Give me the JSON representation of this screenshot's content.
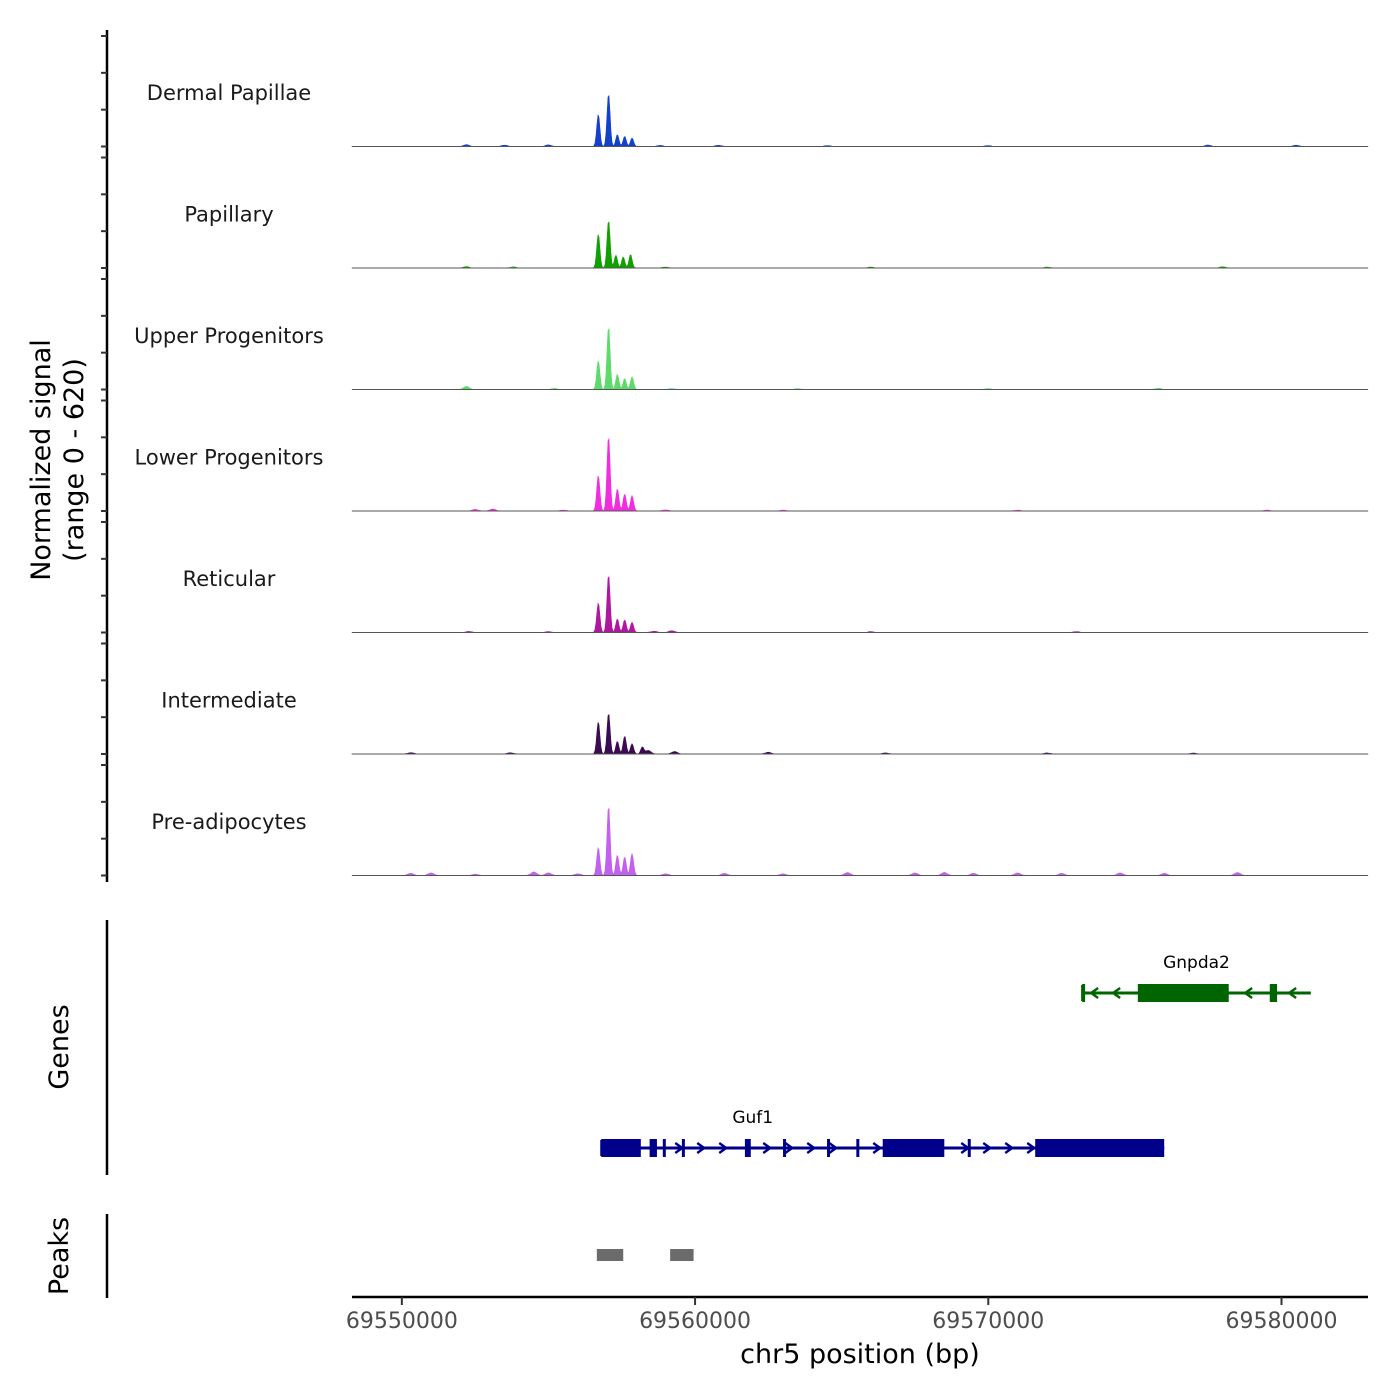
{
  "chart_data": {
    "type": "area",
    "chromosome": "chr5",
    "xlabel": "chr5 position (bp)",
    "ylabel_line1": "Normalized signal",
    "ylabel_line2": "(range 0 - 620)",
    "y_range": [
      0,
      620
    ],
    "xlim": [
      69548300,
      69582950
    ],
    "x_ticks": [
      69550000,
      69560000,
      69570000,
      69580000
    ],
    "x_tick_labels": [
      "69550000",
      "69560000",
      "69570000",
      "69580000"
    ],
    "coverage_tracks": [
      {
        "name": "Dermal Papillae",
        "color": "#1440cc",
        "peaks": [
          [
            69556700,
            380
          ],
          [
            69557050,
            620
          ],
          [
            69557350,
            140
          ],
          [
            69557600,
            120
          ],
          [
            69557850,
            100
          ]
        ],
        "noise": [
          [
            69552200,
            20
          ],
          [
            69553500,
            15
          ],
          [
            69555000,
            18
          ],
          [
            69558800,
            12
          ],
          [
            69560800,
            14
          ],
          [
            69564500,
            10
          ],
          [
            69570000,
            10
          ],
          [
            69577500,
            16
          ],
          [
            69580500,
            14
          ]
        ]
      },
      {
        "name": "Papillary",
        "color": "#11a000",
        "peaks": [
          [
            69556700,
            400
          ],
          [
            69557050,
            560
          ],
          [
            69557300,
            150
          ],
          [
            69557550,
            130
          ],
          [
            69557800,
            160
          ]
        ],
        "noise": [
          [
            69552200,
            15
          ],
          [
            69553800,
            12
          ],
          [
            69559000,
            10
          ],
          [
            69566000,
            10
          ],
          [
            69572000,
            10
          ],
          [
            69578000,
            14
          ]
        ]
      },
      {
        "name": "Upper Progenitors",
        "color": "#5ddb6a",
        "peaks": [
          [
            69556700,
            340
          ],
          [
            69557050,
            740
          ],
          [
            69557350,
            180
          ],
          [
            69557600,
            130
          ],
          [
            69557850,
            150
          ]
        ],
        "noise": [
          [
            69552200,
            35
          ],
          [
            69555200,
            12
          ],
          [
            69559200,
            10
          ],
          [
            69563500,
            10
          ],
          [
            69570000,
            10
          ],
          [
            69575800,
            14
          ]
        ]
      },
      {
        "name": "Lower Progenitors",
        "color": "#f22de0",
        "peaks": [
          [
            69556700,
            420
          ],
          [
            69557050,
            880
          ],
          [
            69557350,
            260
          ],
          [
            69557600,
            200
          ],
          [
            69557850,
            180
          ]
        ],
        "noise": [
          [
            69552500,
            18
          ],
          [
            69553100,
            22
          ],
          [
            69555500,
            10
          ],
          [
            69559000,
            12
          ],
          [
            69563000,
            10
          ],
          [
            69571000,
            10
          ],
          [
            69579500,
            10
          ]
        ]
      },
      {
        "name": "Reticular",
        "color": "#b0169e",
        "peaks": [
          [
            69556700,
            350
          ],
          [
            69557050,
            680
          ],
          [
            69557350,
            160
          ],
          [
            69557600,
            150
          ],
          [
            69557850,
            120
          ]
        ],
        "noise": [
          [
            69552300,
            12
          ],
          [
            69555000,
            10
          ],
          [
            69558600,
            15
          ],
          [
            69559200,
            20
          ],
          [
            69566000,
            10
          ],
          [
            69573000,
            10
          ]
        ]
      },
      {
        "name": "Intermediate",
        "color": "#3a0b52",
        "peaks": [
          [
            69556700,
            380
          ],
          [
            69557050,
            480
          ],
          [
            69557350,
            150
          ],
          [
            69557600,
            210
          ],
          [
            69557850,
            120
          ],
          [
            69558200,
            80
          ]
        ],
        "noise": [
          [
            69550300,
            15
          ],
          [
            69553700,
            14
          ],
          [
            69558400,
            40
          ],
          [
            69559300,
            28
          ],
          [
            69562500,
            20
          ],
          [
            69566500,
            12
          ],
          [
            69572000,
            12
          ],
          [
            69577000,
            10
          ]
        ]
      },
      {
        "name": "Pre-adipocytes",
        "color": "#c260f0",
        "peaks": [
          [
            69556700,
            330
          ],
          [
            69557050,
            820
          ],
          [
            69557350,
            240
          ],
          [
            69557600,
            220
          ],
          [
            69557850,
            260
          ]
        ],
        "noise": [
          [
            69550300,
            25
          ],
          [
            69551000,
            30
          ],
          [
            69552500,
            15
          ],
          [
            69554500,
            40
          ],
          [
            69555000,
            30
          ],
          [
            69556000,
            20
          ],
          [
            69559000,
            20
          ],
          [
            69561000,
            25
          ],
          [
            69563000,
            20
          ],
          [
            69565200,
            35
          ],
          [
            69567500,
            30
          ],
          [
            69568500,
            35
          ],
          [
            69569500,
            25
          ],
          [
            69571000,
            30
          ],
          [
            69572500,
            25
          ],
          [
            69574500,
            30
          ],
          [
            69576000,
            25
          ],
          [
            69578500,
            35
          ]
        ]
      }
    ],
    "genes_track_label": "Genes",
    "genes": [
      {
        "name": "Gnpda2",
        "strand": "-",
        "color": "#006400",
        "start": 69573200,
        "end": 69581000,
        "exons": [
          [
            69573200,
            69573280
          ],
          [
            69575100,
            69578200
          ],
          [
            69579600,
            69579850
          ]
        ]
      },
      {
        "name": "Guf1",
        "strand": "+",
        "color": "#00008b",
        "start": 69556800,
        "end": 69576000,
        "exons": [
          [
            69556800,
            69558150
          ],
          [
            69558450,
            69558700
          ],
          [
            69558900,
            69559000
          ],
          [
            69559550,
            69559650
          ],
          [
            69561700,
            69561900
          ],
          [
            69563000,
            69563100
          ],
          [
            69564500,
            69564600
          ],
          [
            69565500,
            69565600
          ],
          [
            69566400,
            69568500
          ],
          [
            69569300,
            69569400
          ],
          [
            69571600,
            69576000
          ]
        ]
      }
    ],
    "peaks_track_label": "Peaks",
    "peak_regions": [
      [
        69556650,
        69557550
      ],
      [
        69559150,
        69559950
      ]
    ]
  }
}
